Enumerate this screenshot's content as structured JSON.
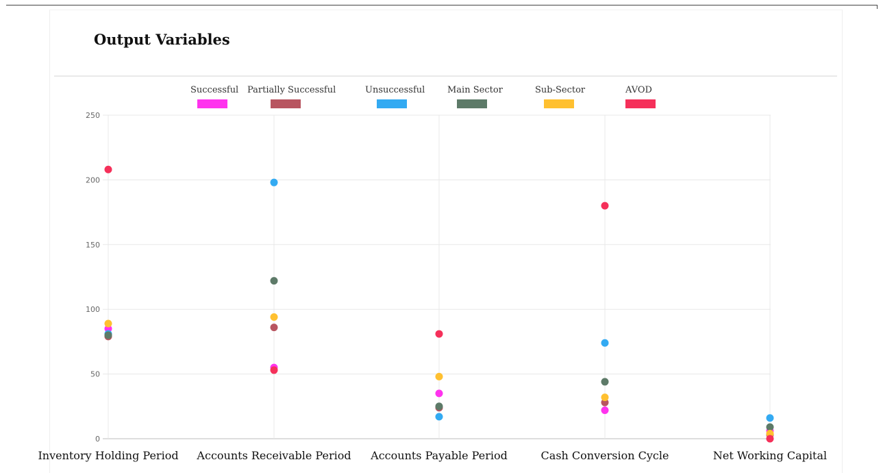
{
  "panel": {
    "title": "Output Variables"
  },
  "chart_data": {
    "type": "scatter",
    "title": "",
    "xlabel": "",
    "ylabel": "",
    "ylim": [
      0,
      250
    ],
    "y_ticks": [
      0,
      50,
      100,
      150,
      200,
      250
    ],
    "grid": true,
    "legend_position": "top",
    "categories": [
      "Inventory Holding Period",
      "Accounts Receivable Period",
      "Accounts Payable Period",
      "Cash Conversion Cycle",
      "Net Working Capital"
    ],
    "series": [
      {
        "name": "Successful",
        "color": "#ff33ee",
        "values": [
          85,
          55,
          35,
          22,
          6
        ]
      },
      {
        "name": "Partially Successful",
        "color": "#b85560",
        "values": [
          79,
          86,
          24,
          28,
          3
        ]
      },
      {
        "name": "Unsuccessful",
        "color": "#33aaf2",
        "values": [
          81,
          198,
          17,
          74,
          16
        ]
      },
      {
        "name": "Main Sector",
        "color": "#5d7a68",
        "values": [
          80,
          122,
          25,
          44,
          9
        ]
      },
      {
        "name": "Sub-Sector",
        "color": "#ffc030",
        "values": [
          89,
          94,
          48,
          32,
          4
        ]
      },
      {
        "name": "AVOD",
        "color": "#f5305a",
        "values": [
          208,
          53,
          81,
          180,
          0
        ]
      }
    ]
  }
}
